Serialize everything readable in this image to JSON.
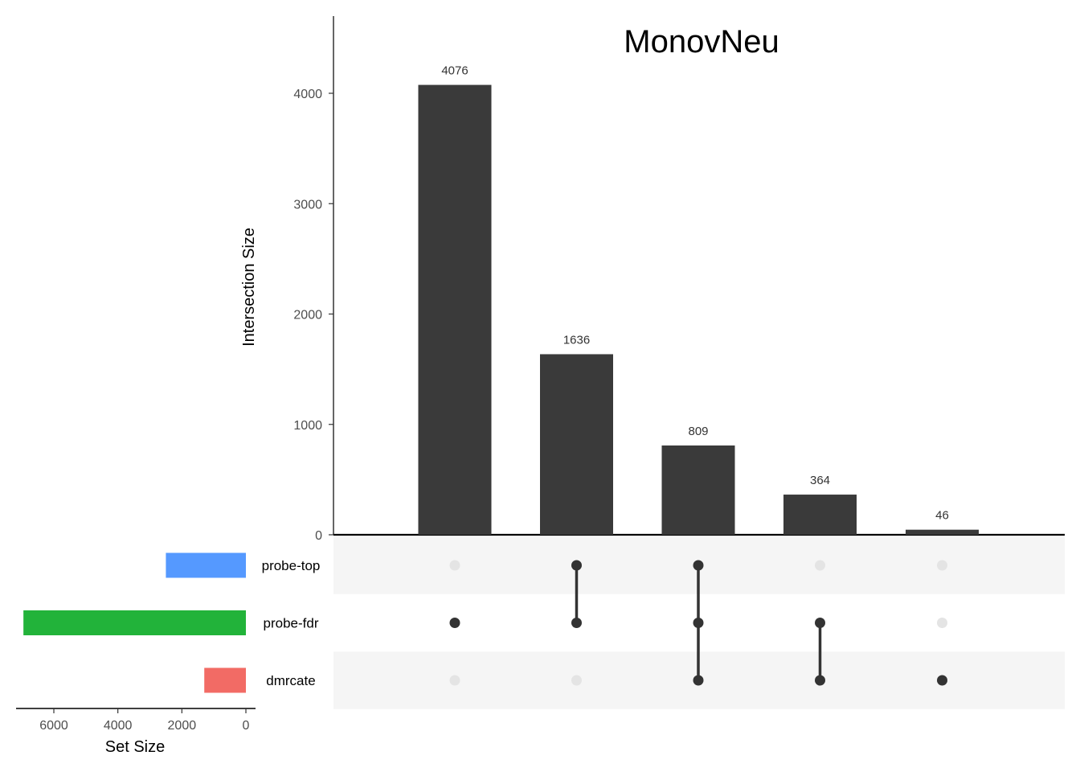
{
  "chart_data": {
    "type": "bar",
    "subtype": "upset",
    "title": "MonovNeu",
    "ylabel": "Intersection Size",
    "ylim": [
      0,
      4500
    ],
    "yticks": [
      0,
      1000,
      2000,
      3000,
      4000
    ],
    "intersections": [
      {
        "value": 4076,
        "sets": [
          "probe-fdr"
        ]
      },
      {
        "value": 1636,
        "sets": [
          "probe-top",
          "probe-fdr"
        ]
      },
      {
        "value": 809,
        "sets": [
          "probe-top",
          "probe-fdr",
          "dmrcate"
        ]
      },
      {
        "value": 364,
        "sets": [
          "probe-fdr",
          "dmrcate"
        ]
      },
      {
        "value": 46,
        "sets": [
          "dmrcate"
        ]
      }
    ],
    "sets": [
      {
        "name": "probe-top",
        "size": 2500,
        "color": "#5599ff"
      },
      {
        "name": "probe-fdr",
        "size": 6950,
        "color": "#22b33a"
      },
      {
        "name": "dmrcate",
        "size": 1300,
        "color": "#f26b65"
      }
    ],
    "set_size_axis": {
      "label": "Set Size",
      "ticks": [
        6000,
        4000,
        2000,
        0
      ],
      "max": 7200
    },
    "bar_color": "#3a3a3a",
    "dot_active_color": "#333333",
    "dot_inactive_color": "#e4e4e4",
    "stripe_color": "#f5f5f5",
    "grid": false
  }
}
